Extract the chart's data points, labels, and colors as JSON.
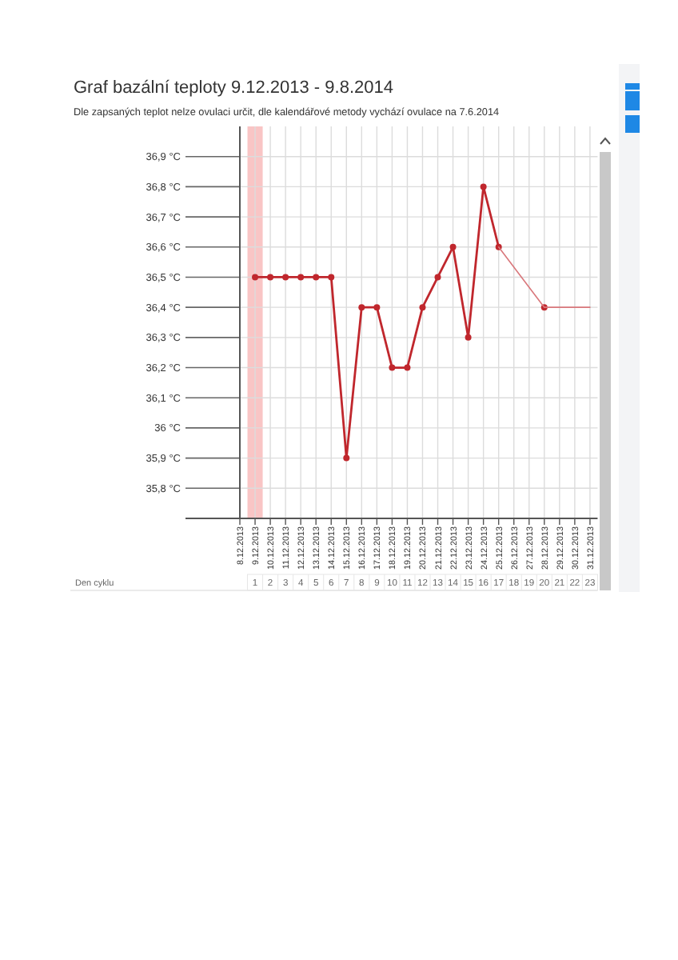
{
  "chart_data": {
    "type": "line",
    "title": "Graf bazální teploty 9.12.2013 - 9.8.2014",
    "subtitle": "Dle zapsaných teplot nelze ovulaci určit, dle kalendářové metody vychází ovulace na 7.6.2014",
    "categories": [
      "8.12.2013",
      "9.12.2013",
      "10.12.2013",
      "11.12.2013",
      "12.12.2013",
      "13.12.2013",
      "14.12.2013",
      "15.12.2013",
      "16.12.2013",
      "17.12.2013",
      "18.12.2013",
      "19.12.2013",
      "20.12.2013",
      "21.12.2013",
      "22.12.2013",
      "23.12.2013",
      "24.12.2013",
      "25.12.2013",
      "26.12.2013",
      "27.12.2013",
      "28.12.2013",
      "29.12.2013",
      "30.12.2013",
      "31.12.2013"
    ],
    "series": [
      {
        "color": "#c0272d",
        "values": [
          null,
          36.5,
          36.5,
          36.5,
          36.5,
          36.5,
          36.5,
          35.9,
          36.4,
          36.4,
          36.2,
          36.2,
          36.4,
          36.5,
          36.6,
          36.3,
          36.8,
          36.6,
          null,
          null,
          36.4,
          null,
          null,
          null
        ]
      },
      {
        "color": "#d9777b",
        "marker": "none",
        "x": [
          "25.12.2013",
          "28.12.2013",
          "31.12.2013"
        ],
        "values": [
          36.6,
          36.4,
          36.4
        ]
      }
    ],
    "ylim": [
      35.7,
      37.0
    ],
    "yticks": [
      {
        "value": 35.8,
        "label": "35,8 °C"
      },
      {
        "value": 35.9,
        "label": "35,9 °C"
      },
      {
        "value": 36.0,
        "label": "36 °C"
      },
      {
        "value": 36.1,
        "label": "36,1 °C"
      },
      {
        "value": 36.2,
        "label": "36,2 °C"
      },
      {
        "value": 36.3,
        "label": "36,3 °C"
      },
      {
        "value": 36.4,
        "label": "36,4 °C"
      },
      {
        "value": 36.5,
        "label": "36,5 °C"
      },
      {
        "value": 36.6,
        "label": "36,6 °C"
      },
      {
        "value": 36.7,
        "label": "36,7 °C"
      },
      {
        "value": 36.8,
        "label": "36,8 °C"
      },
      {
        "value": 36.9,
        "label": "36,9 °C"
      }
    ],
    "x2label": "Den cyklu",
    "x2lim": [
      0,
      23
    ],
    "x2ticks": [
      1,
      2,
      3,
      4,
      5,
      6,
      7,
      8,
      9,
      10,
      11,
      12,
      13,
      14,
      15,
      16,
      17,
      18,
      19,
      20,
      21,
      22,
      23
    ],
    "grid": true,
    "marker": "circle",
    "bands": [
      {
        "axis": "x",
        "from": "9.12.2013",
        "to": "9.12.2013",
        "color": "#f9c5c5"
      }
    ]
  }
}
